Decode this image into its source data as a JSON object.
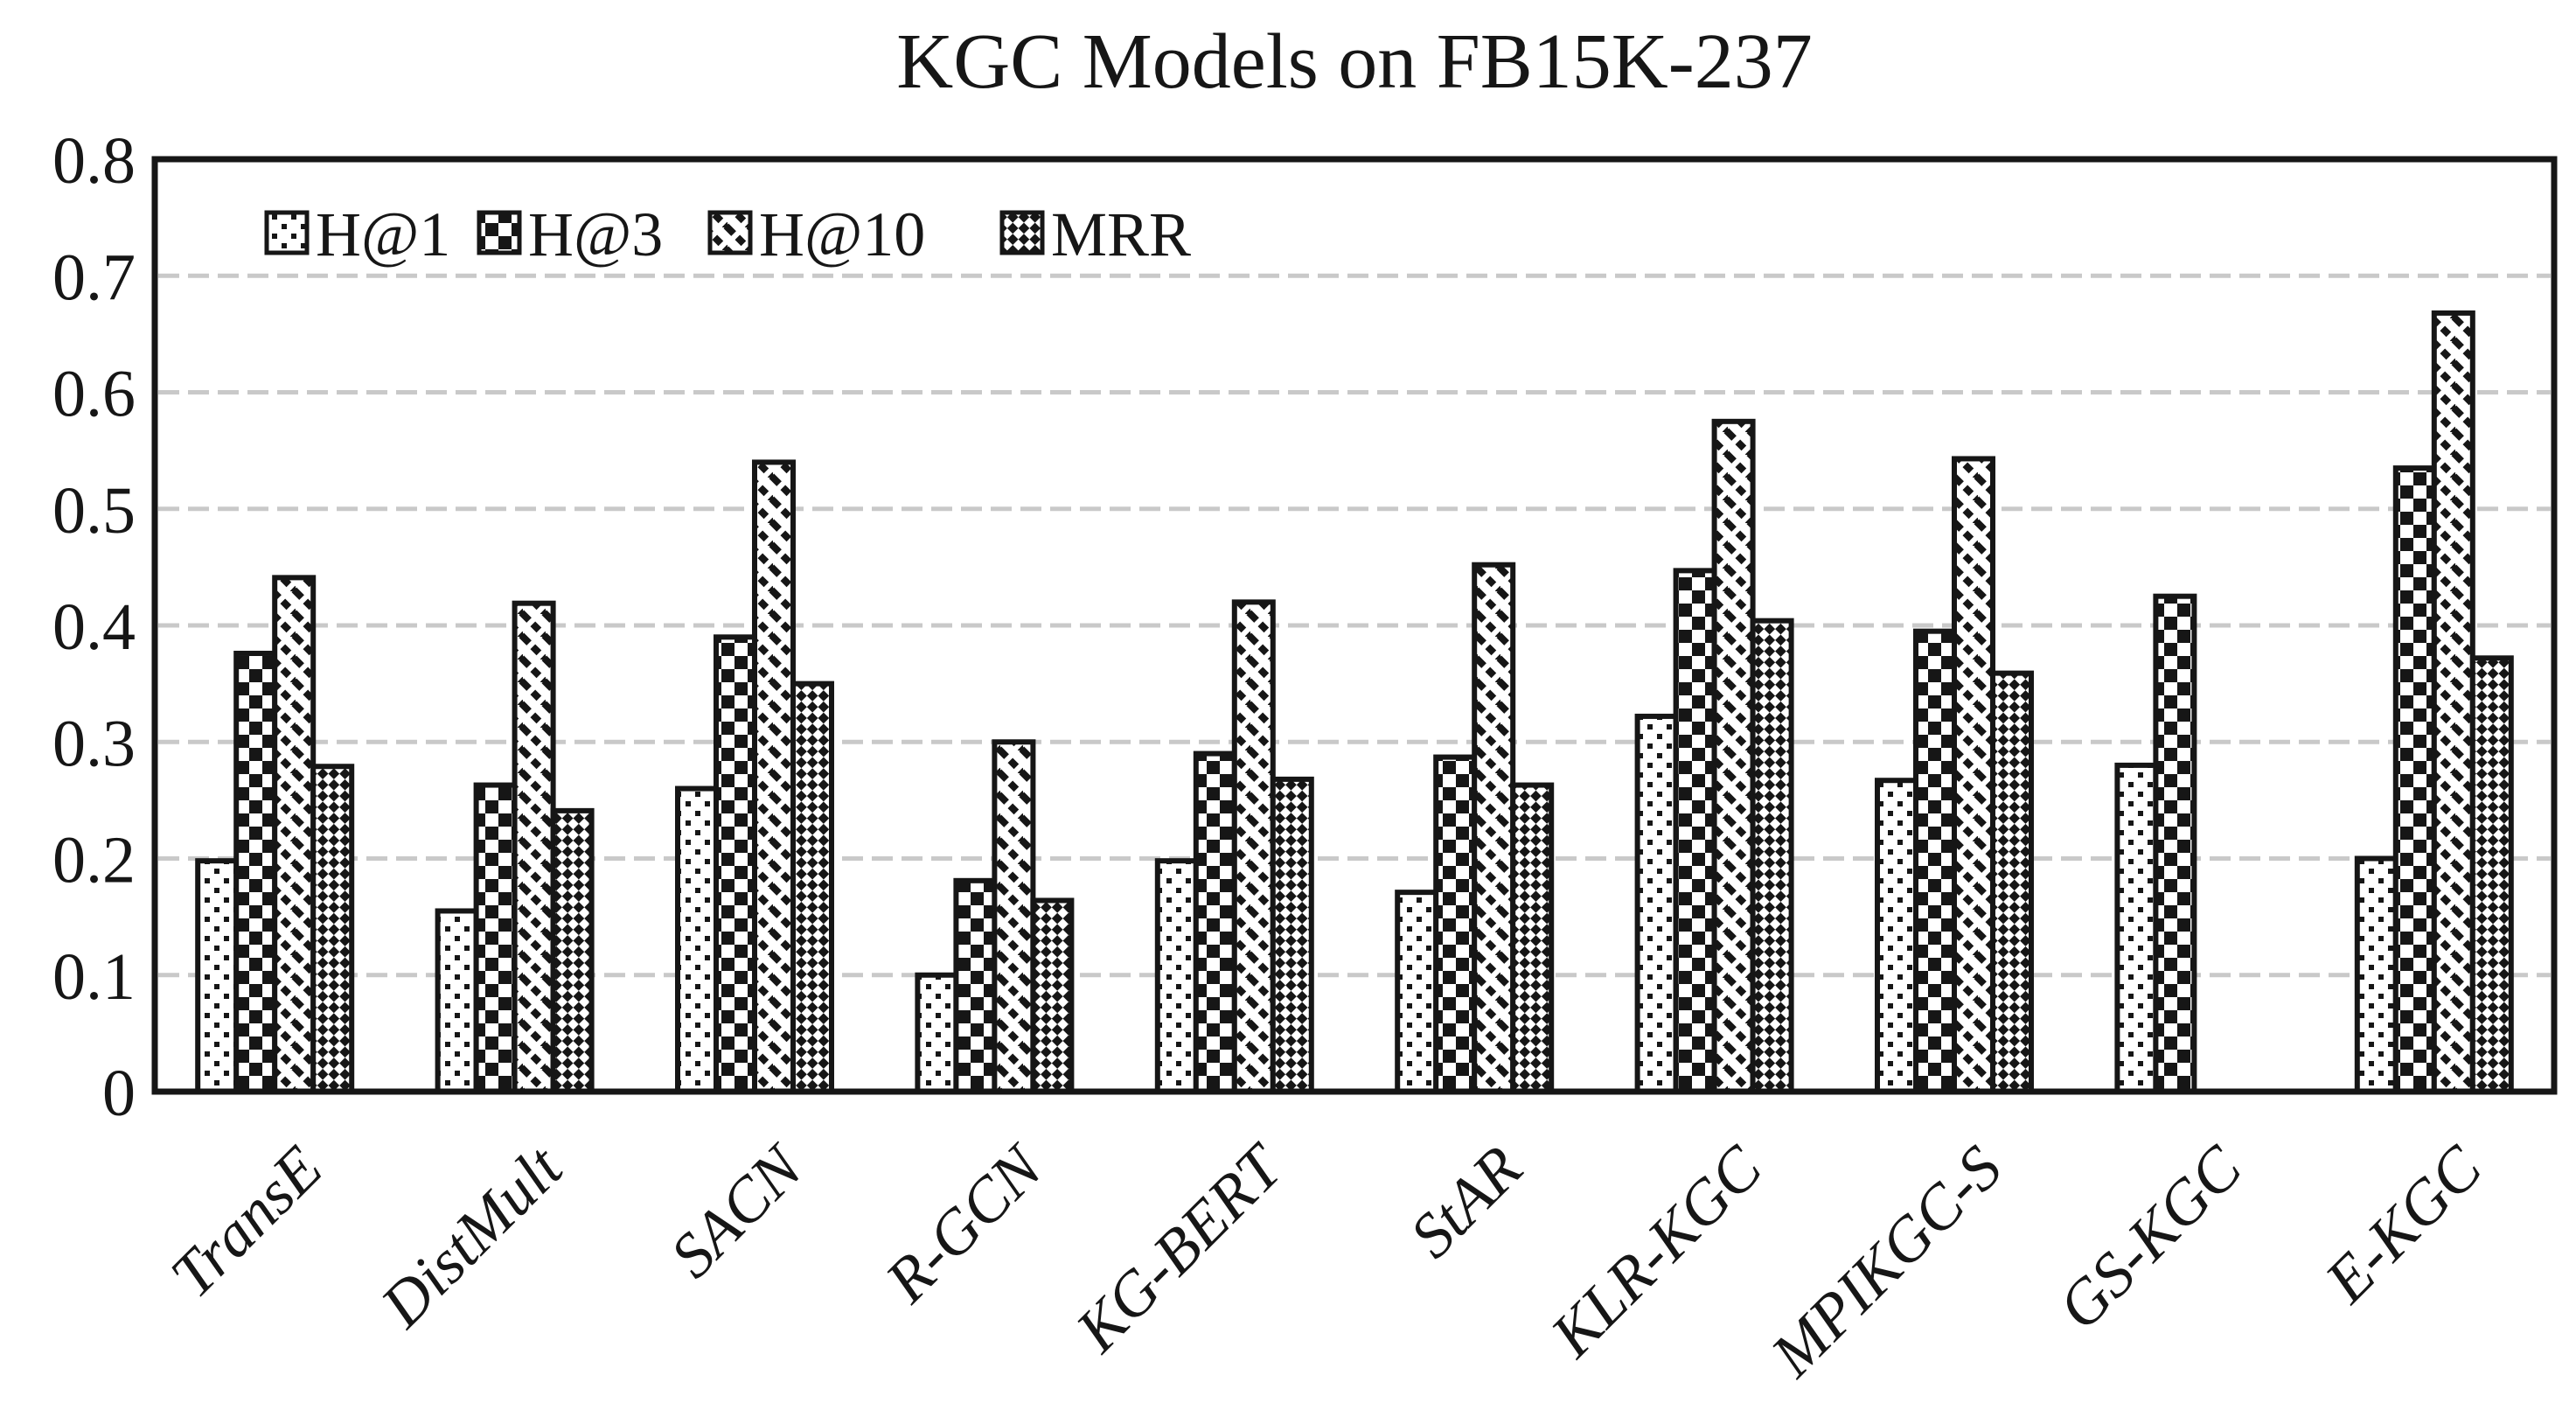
{
  "title": "KGC Models on FB15K-237",
  "chart_data": {
    "type": "bar",
    "title": "KGC Models on FB15K-237",
    "xlabel": "",
    "ylabel": "",
    "categories": [
      "TransE",
      "DistMult",
      "SACN",
      "R-GCN",
      "KG-BERT",
      "StAR",
      "KLR-KGC",
      "MPIKGC-S",
      "GS-KGC",
      "E-KGC"
    ],
    "series": [
      {
        "name": "H@1",
        "pattern": "dots-icon",
        "values": [
          0.198,
          0.155,
          0.26,
          0.1,
          0.198,
          0.171,
          0.322,
          0.267,
          0.28,
          0.2
        ]
      },
      {
        "name": "H@3",
        "pattern": "checker-icon",
        "values": [
          0.376,
          0.263,
          0.39,
          0.181,
          0.29,
          0.287,
          0.447,
          0.395,
          0.425,
          0.535
        ]
      },
      {
        "name": "H@10",
        "pattern": "diagonal-icon",
        "values": [
          0.441,
          0.419,
          0.54,
          0.3,
          0.42,
          0.452,
          0.575,
          0.543,
          null,
          0.668
        ]
      },
      {
        "name": "MRR",
        "pattern": "fine-checker-icon",
        "values": [
          0.279,
          0.241,
          0.35,
          0.164,
          0.268,
          0.263,
          0.404,
          0.359,
          null,
          0.372
        ]
      }
    ],
    "ylim": [
      0,
      0.8
    ],
    "yticks": [
      "0.8",
      "0.7",
      "0.6",
      "0.5",
      "0.4",
      "0.3",
      "0.2",
      "0.1",
      "0"
    ],
    "ytick_values": [
      0.8,
      0.7,
      0.6,
      0.5,
      0.4,
      0.3,
      0.2,
      0.1,
      0
    ],
    "grid": "horizontal-dashed",
    "legend_position": "top-left-inside",
    "colors": {
      "bar_fill": "#ffffff",
      "bar_stroke": "#161616",
      "grid": "#c9c9c9",
      "text": "#161616",
      "background": "#ffffff"
    }
  }
}
